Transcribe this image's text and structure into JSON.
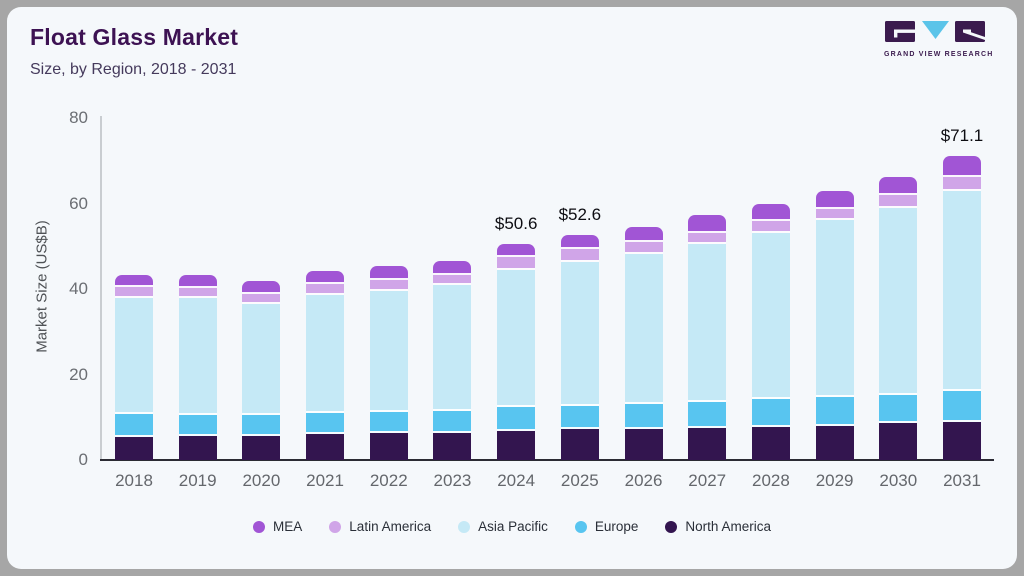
{
  "header": {
    "title": "Float Glass Market",
    "subtitle": "Size, by Region, 2018 - 2031"
  },
  "brand": {
    "name": "GRAND VIEW RESEARCH"
  },
  "colors": {
    "frame": "#a6a6a6",
    "card": "#f5f8fb",
    "title_text": "#3d1253",
    "axis_text": "#6b6e73",
    "y_axis_line": "#c9cdd1",
    "x_axis_line": "#2b2b33",
    "logo_dark": "#3b1b4e",
    "logo_blue": "#5bc4e9"
  },
  "chart_data": {
    "type": "bar",
    "variant": "stacked",
    "title": "Float Glass Market",
    "subtitle": "Size, by Region, 2018 - 2031",
    "ylabel": "Market Size (US$B)",
    "ylim": [
      0,
      80
    ],
    "yticks": [
      0,
      20,
      40,
      60,
      80
    ],
    "grid": false,
    "legend_position": "bottom",
    "categories": [
      "2018",
      "2019",
      "2020",
      "2021",
      "2022",
      "2023",
      "2024",
      "2025",
      "2026",
      "2027",
      "2028",
      "2029",
      "2030",
      "2031"
    ],
    "series": [
      {
        "name": "North America",
        "color": "#33154f",
        "values": [
          5.4,
          5.6,
          5.6,
          6.1,
          6.3,
          6.3,
          6.8,
          7.2,
          7.3,
          7.5,
          7.7,
          8.0,
          8.7,
          8.9
        ]
      },
      {
        "name": "Europe",
        "color": "#58c5f0",
        "values": [
          5.3,
          4.9,
          4.9,
          4.9,
          4.9,
          5.1,
          5.6,
          5.4,
          5.8,
          6.1,
          6.5,
          6.8,
          6.5,
          7.3
        ]
      },
      {
        "name": "Asia Pacific",
        "color": "#c5e9f6",
        "values": [
          27.3,
          27.4,
          26.0,
          27.6,
          28.3,
          29.5,
          32.0,
          33.7,
          35.1,
          37.0,
          38.8,
          41.4,
          43.7,
          46.8
        ]
      },
      {
        "name": "Latin America",
        "color": "#d0a5e8",
        "values": [
          2.5,
          2.4,
          2.3,
          2.6,
          2.6,
          2.3,
          3.0,
          3.0,
          2.8,
          2.6,
          2.8,
          2.6,
          3.0,
          3.1
        ]
      },
      {
        "name": "MEA",
        "color": "#a155d5",
        "values": [
          2.7,
          3.0,
          3.0,
          3.0,
          3.3,
          3.3,
          3.2,
          3.3,
          3.5,
          4.0,
          4.1,
          4.2,
          4.4,
          5.0
        ]
      }
    ],
    "totals": [
      43.2,
      43.3,
      41.8,
      44.2,
      45.4,
      46.5,
      50.6,
      52.6,
      54.5,
      57.2,
      59.9,
      63.0,
      66.3,
      71.1
    ],
    "annotations": [
      {
        "category": "2024",
        "label": "$50.6"
      },
      {
        "category": "2025",
        "label": "$52.6"
      },
      {
        "category": "2031",
        "label": "$71.1"
      }
    ],
    "legend_order": [
      "MEA",
      "Latin America",
      "Asia Pacific",
      "Europe",
      "North America"
    ]
  }
}
